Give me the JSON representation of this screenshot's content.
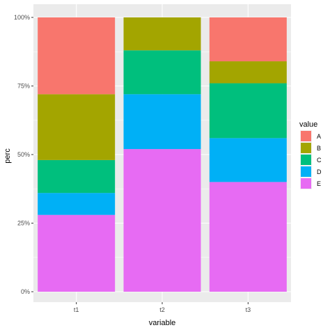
{
  "chart_data": {
    "type": "bar",
    "stacked": true,
    "categories": [
      "t1",
      "t2",
      "t3"
    ],
    "series": [
      {
        "name": "A",
        "color": "#F8766D",
        "values": [
          0.28,
          0.0,
          0.16
        ]
      },
      {
        "name": "B",
        "color": "#A3A500",
        "values": [
          0.24,
          0.12,
          0.08
        ]
      },
      {
        "name": "C",
        "color": "#00BF7D",
        "values": [
          0.12,
          0.16,
          0.2
        ]
      },
      {
        "name": "D",
        "color": "#00B0F6",
        "values": [
          0.08,
          0.2,
          0.16
        ]
      },
      {
        "name": "E",
        "color": "#E76BF3",
        "values": [
          0.28,
          0.52,
          0.4
        ]
      }
    ],
    "stack_order_bottom_to_top": [
      "E",
      "D",
      "C",
      "B",
      "A"
    ],
    "xlabel": "variable",
    "ylabel": "perc",
    "ylim": [
      0,
      1
    ],
    "yticks": [
      0,
      0.25,
      0.5,
      0.75,
      1
    ],
    "ytick_labels": [
      "0%",
      "25%",
      "50%",
      "75%",
      "100%"
    ],
    "legend": {
      "title": "value",
      "position": "right",
      "entries": [
        "A",
        "B",
        "C",
        "D",
        "E"
      ]
    },
    "grid": true,
    "panel_background": "#EBEBEB"
  }
}
